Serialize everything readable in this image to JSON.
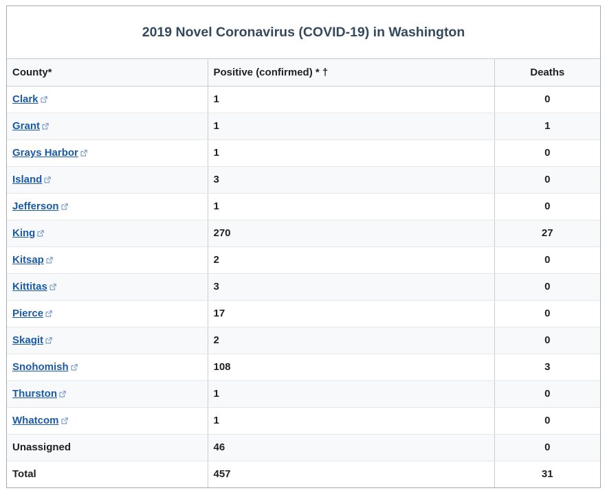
{
  "caption": "2019 Novel Coronavirus (COVID-19) in Washington",
  "headers": {
    "county": "County*",
    "positive": "Positive (confirmed) * †",
    "deaths": "Deaths"
  },
  "rows": [
    {
      "county": "Clark",
      "link": true,
      "positive": "1",
      "deaths": "0"
    },
    {
      "county": "Grant",
      "link": true,
      "positive": "1",
      "deaths": "1"
    },
    {
      "county": "Grays Harbor",
      "link": true,
      "positive": "1",
      "deaths": "0"
    },
    {
      "county": "Island",
      "link": true,
      "positive": "3",
      "deaths": "0"
    },
    {
      "county": "Jefferson",
      "link": true,
      "positive": "1",
      "deaths": "0"
    },
    {
      "county": "King",
      "link": true,
      "positive": "270",
      "deaths": "27"
    },
    {
      "county": "Kitsap",
      "link": true,
      "positive": "2",
      "deaths": "0"
    },
    {
      "county": "Kittitas",
      "link": true,
      "positive": "3",
      "deaths": "0"
    },
    {
      "county": "Pierce",
      "link": true,
      "positive": "17",
      "deaths": "0"
    },
    {
      "county": "Skagit",
      "link": true,
      "positive": "2",
      "deaths": "0"
    },
    {
      "county": "Snohomish",
      "link": true,
      "positive": "108",
      "deaths": "3"
    },
    {
      "county": "Thurston",
      "link": true,
      "positive": "1",
      "deaths": "0"
    },
    {
      "county": "Whatcom",
      "link": true,
      "positive": "1",
      "deaths": "0"
    },
    {
      "county": "Unassigned",
      "link": false,
      "positive": "46",
      "deaths": "0"
    },
    {
      "county": "Total",
      "link": false,
      "positive": "457",
      "deaths": "31"
    }
  ],
  "link_icon": "external-link-icon",
  "colors": {
    "link": "#1a5aa8",
    "caption": "#34495e",
    "stripe": "#f8f9fa",
    "border": "#c8ccd1"
  }
}
